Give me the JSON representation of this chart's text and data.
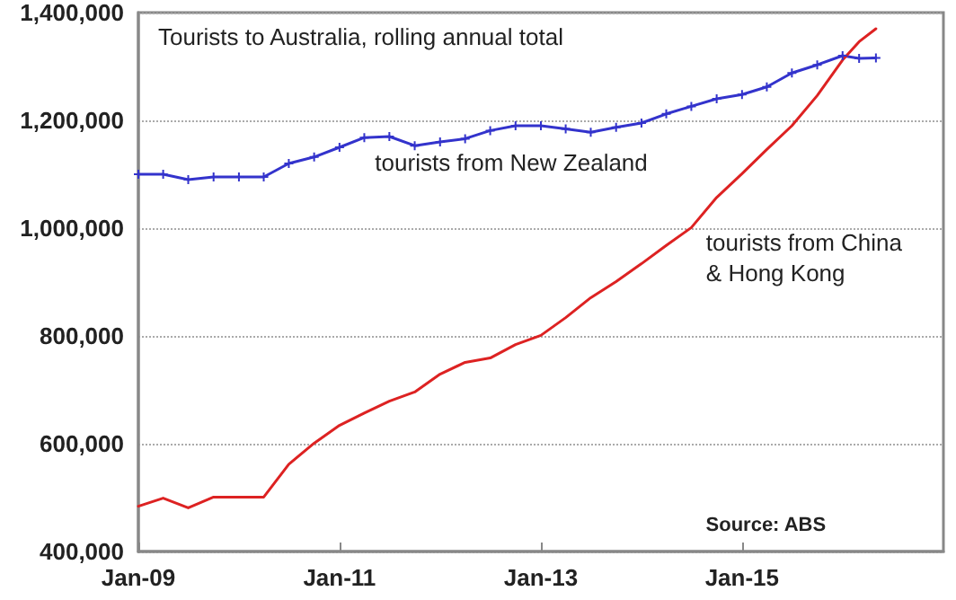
{
  "chart_data": {
    "type": "line",
    "title": "Tourists to Australia, rolling annual total",
    "x": [
      "2009-01",
      "2009-04",
      "2009-07",
      "2009-10",
      "2010-01",
      "2010-04",
      "2010-07",
      "2010-10",
      "2011-01",
      "2011-04",
      "2011-07",
      "2011-10",
      "2012-01",
      "2012-04",
      "2012-07",
      "2012-10",
      "2013-01",
      "2013-04",
      "2013-07",
      "2013-10",
      "2014-01",
      "2014-04",
      "2014-07",
      "2014-10",
      "2015-01",
      "2015-04",
      "2015-07",
      "2015-10",
      "2016-01",
      "2016-03",
      "2016-05"
    ],
    "series": [
      {
        "name": "tourists from New Zealand",
        "color": "#3333cc",
        "marker": "cross",
        "values": [
          1100000,
          1100000,
          1090000,
          1095000,
          1095000,
          1095000,
          1120000,
          1132000,
          1150000,
          1168000,
          1170000,
          1153000,
          1160000,
          1166000,
          1181000,
          1190000,
          1190000,
          1184000,
          1178000,
          1187000,
          1195000,
          1212000,
          1226000,
          1240000,
          1248000,
          1262000,
          1288000,
          1303000,
          1320000,
          1315000,
          1316000
        ]
      },
      {
        "name": "tourists from China & Hong Kong",
        "color": "#dd2222",
        "values": [
          484000,
          499000,
          481000,
          501000,
          501000,
          501000,
          562000,
          601000,
          634000,
          657000,
          679000,
          696000,
          729000,
          751000,
          759000,
          784000,
          801000,
          834000,
          871000,
          901000,
          934000,
          968000,
          1001000,
          1057000,
          1101000,
          1146000,
          1190000,
          1246000,
          1312000,
          1346000,
          1370000
        ]
      }
    ],
    "xlim": [
      "2009-01",
      "2017-01"
    ],
    "xticks": [
      {
        "value": "2009-01",
        "label": "Jan-09"
      },
      {
        "value": "2011-01",
        "label": "Jan-11"
      },
      {
        "value": "2013-01",
        "label": "Jan-13"
      },
      {
        "value": "2015-01",
        "label": "Jan-15"
      }
    ],
    "ylim": [
      400000,
      1400000
    ],
    "yticks": [
      {
        "value": 400000,
        "label": "400,000"
      },
      {
        "value": 600000,
        "label": "600,000"
      },
      {
        "value": 800000,
        "label": "800,000"
      },
      {
        "value": 1000000,
        "label": "1,000,000"
      },
      {
        "value": 1200000,
        "label": "1,200,000"
      },
      {
        "value": 1400000,
        "label": "1,400,000"
      }
    ],
    "grid": "y",
    "legend": false,
    "line_style": "solid",
    "annotations": [
      "Source: ABS"
    ]
  }
}
